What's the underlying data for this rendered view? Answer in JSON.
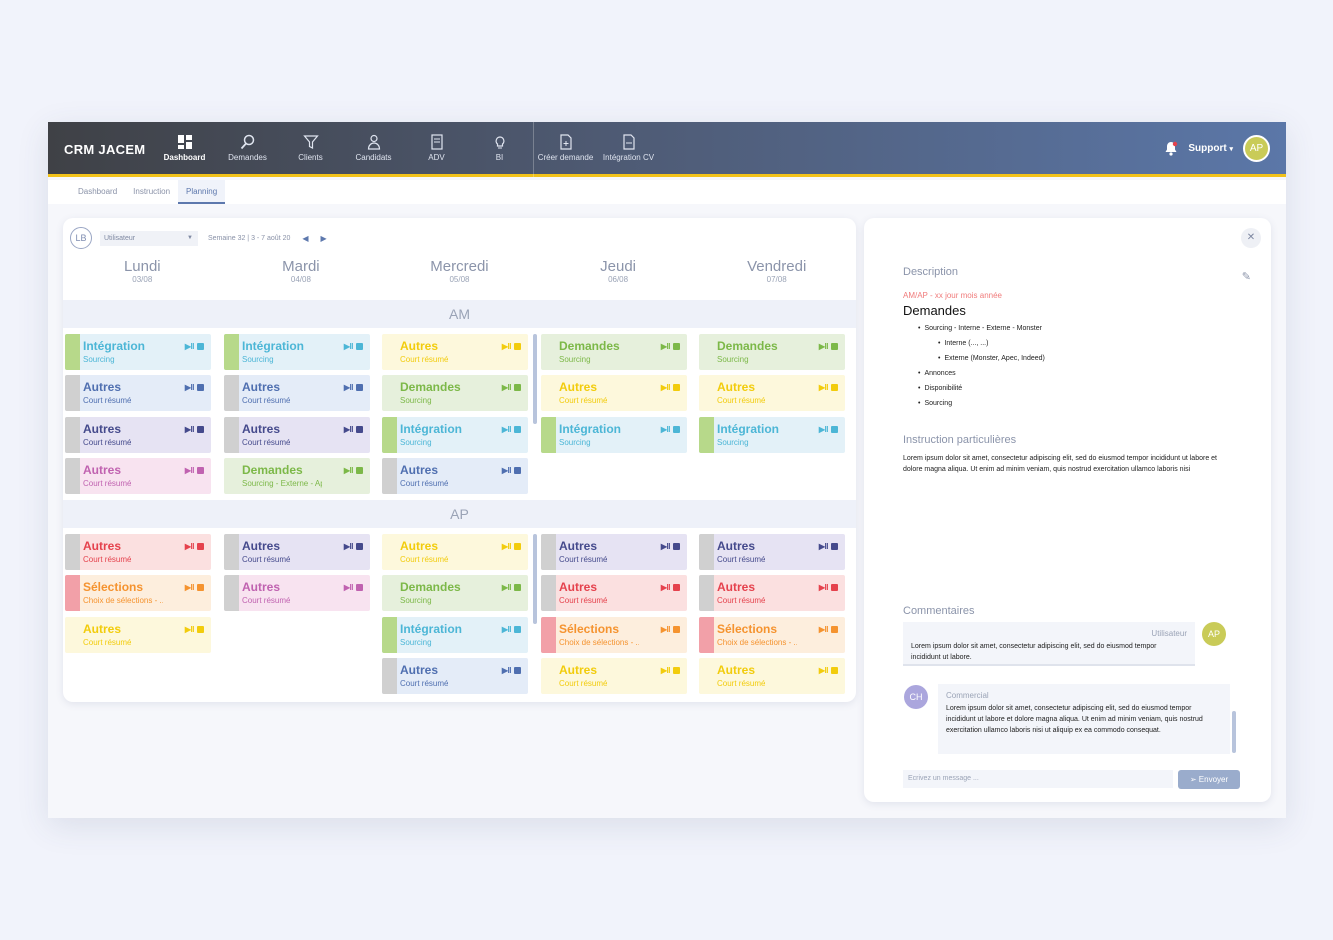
{
  "app": {
    "brand": "CRM JACEM",
    "nav": [
      {
        "label": "Dashboard",
        "icon": "dashboard-icon",
        "active": true
      },
      {
        "label": "Demandes",
        "icon": "search-icon"
      },
      {
        "label": "Clients",
        "icon": "filter-icon"
      },
      {
        "label": "Candidats",
        "icon": "candidate-icon"
      },
      {
        "label": "ADV",
        "icon": "document-icon"
      },
      {
        "label": "BI",
        "icon": "lightbulb-icon"
      }
    ],
    "nav2": [
      {
        "label": "Créer demande",
        "icon": "new-file-icon"
      },
      {
        "label": "Intégration CV",
        "icon": "cv-file-icon"
      }
    ],
    "support_label": "Support",
    "user_initials": "AP"
  },
  "subnav": [
    "Dashboard",
    "Instruction",
    "Planning"
  ],
  "planning": {
    "user_initials": "LB",
    "user_select": "Utilisateur",
    "week": "Semaine 32 | 3 - 7 août 20",
    "days": [
      {
        "name": "Lundi",
        "date": "03/08"
      },
      {
        "name": "Mardi",
        "date": "04/08"
      },
      {
        "name": "Mercredi",
        "date": "05/08"
      },
      {
        "name": "Jeudi",
        "date": "06/08"
      },
      {
        "name": "Vendredi",
        "date": "07/08"
      }
    ],
    "am_label": "AM",
    "ap_label": "AP",
    "controls": "▶ll",
    "am": [
      [
        {
          "t": "Intégration",
          "s": "Sourcing",
          "c": "blue",
          "stripe": "#b7d98a"
        },
        {
          "t": "Autres",
          "s": "Court résumé",
          "c": "steel",
          "stripe": "#d0d0d0"
        },
        {
          "t": "Autres",
          "s": "Court résumé",
          "c": "navy",
          "stripe": "#d0d0d0"
        },
        {
          "t": "Autres",
          "s": "Court résumé",
          "c": "pink",
          "stripe": "#d0d0d0"
        }
      ],
      [
        {
          "t": "Intégration",
          "s": "Sourcing",
          "c": "blue",
          "stripe": "#b7d98a"
        },
        {
          "t": "Autres",
          "s": "Court résumé",
          "c": "steel",
          "stripe": "#d0d0d0"
        },
        {
          "t": "Autres",
          "s": "Court résumé",
          "c": "navy",
          "stripe": "#d0d0d0"
        },
        {
          "t": "Demandes",
          "s": "Sourcing - Externe - Apec",
          "c": "green",
          "stripe": ""
        }
      ],
      [
        {
          "t": "Autres",
          "s": "Court résumé",
          "c": "yellow",
          "stripe": ""
        },
        {
          "t": "Demandes",
          "s": "Sourcing",
          "c": "green",
          "stripe": ""
        },
        {
          "t": "Intégration",
          "s": "Sourcing",
          "c": "blue",
          "stripe": "#b7d98a"
        },
        {
          "t": "Autres",
          "s": "Court résumé",
          "c": "steel",
          "stripe": "#d0d0d0"
        }
      ],
      [
        {
          "t": "Demandes",
          "s": "Sourcing",
          "c": "green",
          "stripe": ""
        },
        {
          "t": "Autres",
          "s": "Court résumé",
          "c": "yellow",
          "stripe": ""
        },
        {
          "t": "Intégration",
          "s": "Sourcing",
          "c": "blue",
          "stripe": "#b7d98a"
        }
      ],
      [
        {
          "t": "Demandes",
          "s": "Sourcing",
          "c": "green",
          "stripe": ""
        },
        {
          "t": "Autres",
          "s": "Court résumé",
          "c": "yellow",
          "stripe": ""
        },
        {
          "t": "Intégration",
          "s": "Sourcing",
          "c": "blue",
          "stripe": "#b7d98a"
        }
      ]
    ],
    "ap": [
      [
        {
          "t": "Autres",
          "s": "Court résumé",
          "c": "red",
          "stripe": "#d0d0d0"
        },
        {
          "t": "Sélections",
          "s": "Choix de sélections - ...",
          "c": "orange",
          "stripe": "#f2a0a8"
        },
        {
          "t": "Autres",
          "s": "Court résumé",
          "c": "yellow",
          "stripe": ""
        }
      ],
      [
        {
          "t": "Autres",
          "s": "Court résumé",
          "c": "navy",
          "stripe": "#d0d0d0"
        },
        {
          "t": "Autres",
          "s": "Court résumé",
          "c": "pink",
          "stripe": "#d0d0d0"
        }
      ],
      [
        {
          "t": "Autres",
          "s": "Court résumé",
          "c": "yellow",
          "stripe": ""
        },
        {
          "t": "Demandes",
          "s": "Sourcing",
          "c": "green",
          "stripe": ""
        },
        {
          "t": "Intégration",
          "s": "Sourcing",
          "c": "blue",
          "stripe": "#b7d98a"
        },
        {
          "t": "Autres",
          "s": "Court résumé",
          "c": "steel",
          "stripe": "#d0d0d0"
        }
      ],
      [
        {
          "t": "Autres",
          "s": "Court résumé",
          "c": "navy",
          "stripe": "#d0d0d0"
        },
        {
          "t": "Autres",
          "s": "Court résumé",
          "c": "red",
          "stripe": "#d0d0d0"
        },
        {
          "t": "Sélections",
          "s": "Choix de sélections - ...",
          "c": "orange",
          "stripe": "#f2a0a8"
        },
        {
          "t": "Autres",
          "s": "Court résumé",
          "c": "yellow",
          "stripe": ""
        }
      ],
      [
        {
          "t": "Autres",
          "s": "Court résumé",
          "c": "navy",
          "stripe": "#d0d0d0"
        },
        {
          "t": "Autres",
          "s": "Court résumé",
          "c": "red",
          "stripe": "#d0d0d0"
        },
        {
          "t": "Sélections",
          "s": "Choix de sélections - ...",
          "c": "orange",
          "stripe": "#f2a0a8"
        },
        {
          "t": "Autres",
          "s": "Court résumé",
          "c": "yellow",
          "stripe": ""
        }
      ]
    ]
  },
  "colors": {
    "blue": {
      "bg": "#e3f1f8",
      "fg": "#4cb6d6"
    },
    "steel": {
      "bg": "#e4ecf8",
      "fg": "#4f6fb0"
    },
    "navy": {
      "bg": "#e6e3f3",
      "fg": "#454a8c"
    },
    "pink": {
      "bg": "#f8e3f0",
      "fg": "#c062b0"
    },
    "green": {
      "bg": "#e6f0dc",
      "fg": "#7cb848"
    },
    "yellow": {
      "bg": "#fdf8dc",
      "fg": "#f2cc0c"
    },
    "red": {
      "bg": "#fbe0e0",
      "fg": "#e5424d"
    },
    "orange": {
      "bg": "#fdeedd",
      "fg": "#f5932f"
    }
  },
  "detail": {
    "desc_title": "Description",
    "date": "AM/AP - xx jour mois année",
    "heading": "Demandes",
    "items": [
      {
        "text": "Sourcing - Interne - Externe - Monster",
        "sub": false
      },
      {
        "text": "Interne (..., ...)",
        "sub": true
      },
      {
        "text": "Externe (Monster, Apec, Indeed)",
        "sub": true
      },
      {
        "text": "Annonces",
        "sub": false
      },
      {
        "text": "Disponibilité",
        "sub": false
      },
      {
        "text": "Sourcing",
        "sub": false
      }
    ],
    "instr_title": "Instruction particulières",
    "instr_text": "Lorem ipsum dolor sit amet, consectetur adipiscing elit, sed do eiusmod tempor incididunt ut labore et dolore magna aliqua. Ut enim ad minim veniam, quis nostrud exercitation ullamco laboris nisi",
    "comments_title": "Commentaires",
    "c1_who": "Utilisateur",
    "c1_text": "Lorem ipsum dolor sit amet, consectetur adipiscing elit, sed do eiusmod tempor incididunt ut labore.",
    "c1_initials": "AP",
    "c2_who": "Commercial",
    "c2_text": "Lorem ipsum dolor sit amet, consectetur adipiscing elit, sed do eiusmod tempor incididunt ut labore et dolore magna aliqua. Ut enim ad minim veniam, quis nostrud exercitation ullamco laboris nisi ut aliquip ex ea commodo consequat.",
    "c2_initials": "CH",
    "placeholder": "Ecrivez un message ...",
    "send": "Envoyer"
  }
}
